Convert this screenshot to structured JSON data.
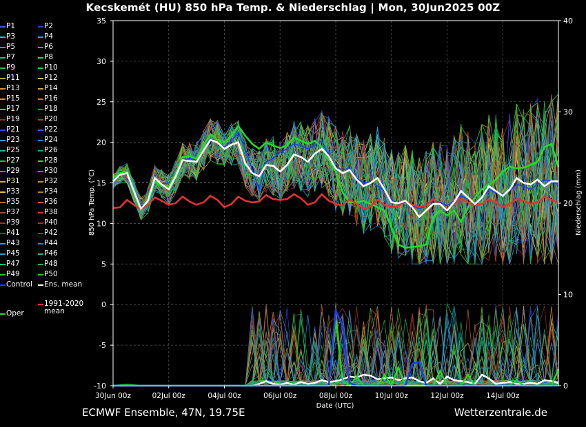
{
  "title": "Kecskemét  (HU)  850 hPa Temp. & Niederschlag | Mon, 30Jun2025 00Z",
  "footer_left": "ECMWF Ensemble, 47N, 19.75E",
  "footer_right": "Wetterzentrale.de",
  "colors": {
    "background": "#000000",
    "mean": "#ffffff",
    "climate": "#e83030",
    "operational": "#22dd22",
    "control": "#1a3cff",
    "grid": "#555555"
  },
  "legend": {
    "members": [
      "P1",
      "P2",
      "P3",
      "P4",
      "P5",
      "P6",
      "P7",
      "P8",
      "P9",
      "P10",
      "P11",
      "P12",
      "P13",
      "P14",
      "P15",
      "P16",
      "P17",
      "P18",
      "P19",
      "P20",
      "P21",
      "P22",
      "P23",
      "P24",
      "P25",
      "P26",
      "P27",
      "P28",
      "P29",
      "P30",
      "P31",
      "P32",
      "P33",
      "P34",
      "P35",
      "P36",
      "P37",
      "P38",
      "P39",
      "P40",
      "P41",
      "P42",
      "P43",
      "P44",
      "P45",
      "P46",
      "P47",
      "P48",
      "P49",
      "P50"
    ],
    "control": "Control",
    "mean": "Ens. mean",
    "climate_line1": "1991-2020",
    "climate_line2": "mean",
    "oper": "Oper"
  },
  "chart_data": {
    "type": "line",
    "xlabel": "Date (UTC)",
    "ylabel": "850 hPa Temp. (°C)",
    "y2label": "Niederschlag (mm)",
    "ylim": [
      -10,
      35
    ],
    "y2lim": [
      0,
      40
    ],
    "xlim": [
      0,
      16
    ],
    "yticks": [
      -10,
      -5,
      0,
      5,
      10,
      15,
      20,
      25,
      30,
      35
    ],
    "y2ticks": [
      0,
      10,
      20,
      30,
      40
    ],
    "xticks": [
      0,
      2,
      4,
      6,
      8,
      10,
      12,
      14
    ],
    "xtick_labels": [
      "30Jun 00z",
      "02Jul 00z",
      "04Jul 00z",
      "06Jul 00z",
      "08Jul 00z",
      "10Jul 00z",
      "12Jul 00z",
      "14Jul 00z"
    ],
    "grid": true,
    "member_colors": [
      "#3a5cff",
      "#1e44d8",
      "#34b8c8",
      "#25a3e0",
      "#2a9fd0",
      "#18b0a0",
      "#20c080",
      "#2ad060",
      "#28c050",
      "#25d030",
      "#c8a040",
      "#e0b050",
      "#d0a030",
      "#e0a040",
      "#d09050",
      "#d07040",
      "#e08060",
      "#c05030",
      "#a03020",
      "#c03828",
      "#2d48f0",
      "#3060e0",
      "#30a0e0",
      "#2080c0",
      "#20b0b0",
      "#10a090",
      "#20c060",
      "#30d040",
      "#20c040",
      "#28b030",
      "#d0b040",
      "#c09030",
      "#e0c050",
      "#b08020",
      "#b07030",
      "#c06040",
      "#a05030",
      "#c04030",
      "#904020",
      "#b03020",
      "#3040e0",
      "#2050d0",
      "#4090e0",
      "#3080d0",
      "#20a0c0",
      "#30b090",
      "#10c070",
      "#20b050",
      "#30c030",
      "#20d020"
    ],
    "series": [
      {
        "name": "Ens. mean",
        "x": [
          0,
          0.25,
          0.5,
          0.75,
          1,
          1.25,
          1.5,
          1.75,
          2,
          2.25,
          2.5,
          2.75,
          3,
          3.25,
          3.5,
          3.75,
          4,
          4.25,
          4.5,
          4.75,
          5,
          5.25,
          5.5,
          5.75,
          6,
          6.25,
          6.5,
          6.75,
          7,
          7.25,
          7.5,
          7.75,
          8,
          8.25,
          8.5,
          8.75,
          9,
          9.25,
          9.5,
          9.75,
          10,
          10.25,
          10.5,
          10.75,
          11,
          11.25,
          11.5,
          11.75,
          12,
          12.25,
          12.5,
          12.75,
          13,
          13.25,
          13.5,
          13.75,
          14,
          14.25,
          14.5,
          14.75,
          15,
          15.25,
          15.5,
          15.75,
          16
        ],
        "y": [
          15.2,
          16,
          16.2,
          14,
          11.8,
          12.8,
          15.6,
          14.8,
          14.2,
          15.8,
          17.8,
          17.7,
          17.6,
          19,
          20.3,
          20,
          19.2,
          19.7,
          20,
          17.4,
          16.2,
          15.8,
          17.2,
          17.1,
          16.4,
          17.2,
          18.5,
          18.2,
          17.6,
          18.6,
          19.2,
          18.3,
          16.8,
          16.2,
          16.6,
          15.4,
          14.6,
          15,
          15.6,
          14.2,
          12.6,
          12.5,
          12.8,
          12,
          10.8,
          11.6,
          12.4,
          12.4,
          11.6,
          12.6,
          14,
          13.2,
          12.4,
          13.2,
          14.6,
          14,
          13.4,
          14.2,
          15.6,
          15,
          14.8,
          15.4,
          14.6,
          15.2,
          15.2
        ]
      },
      {
        "name": "1991-2020 mean",
        "x": [
          0,
          0.25,
          0.5,
          0.75,
          1,
          1.25,
          1.5,
          1.75,
          2,
          2.25,
          2.5,
          2.75,
          3,
          3.25,
          3.5,
          3.75,
          4,
          4.25,
          4.5,
          4.75,
          5,
          5.25,
          5.5,
          5.75,
          6,
          6.25,
          6.5,
          6.75,
          7,
          7.25,
          7.5,
          7.75,
          8,
          8.25,
          8.5,
          8.75,
          9,
          9.25,
          9.5,
          9.75,
          10,
          10.25,
          10.5,
          10.75,
          11,
          11.25,
          11.5,
          11.75,
          12,
          12.25,
          12.5,
          12.75,
          13,
          13.25,
          13.5,
          13.75,
          14,
          14.25,
          14.5,
          14.75,
          15,
          15.25,
          15.5,
          15.75,
          16
        ],
        "y": [
          11.9,
          12,
          12.9,
          12.3,
          11.7,
          12.3,
          13.2,
          12.8,
          12.3,
          12.5,
          13.3,
          12.7,
          12.3,
          12.6,
          13.4,
          12.9,
          12,
          12.4,
          13.3,
          12.8,
          12.6,
          12.7,
          13.5,
          13,
          12.9,
          13,
          13.6,
          13.1,
          12.3,
          12.6,
          13.6,
          12.8,
          12.4,
          12.2,
          13,
          12.4,
          11.8,
          12.1,
          12.9,
          12.3,
          12,
          12.1,
          12.8,
          12.3,
          12,
          12.2,
          13,
          12.3,
          11.8,
          12.4,
          13.1,
          12.6,
          12.2,
          12.4,
          13,
          12.6,
          12,
          12.4,
          13,
          12.8,
          12.4,
          12.6,
          13.3,
          12.9,
          12.6
        ]
      },
      {
        "name": "Oper",
        "x": [
          0,
          0.25,
          0.5,
          0.75,
          1,
          1.25,
          1.5,
          1.75,
          2,
          2.25,
          2.5,
          2.75,
          3,
          3.25,
          3.5,
          3.75,
          4,
          4.25,
          4.5,
          4.75,
          5,
          5.25,
          5.5,
          5.75,
          6,
          6.25,
          6.5,
          6.75,
          7,
          7.25,
          7.5,
          7.75,
          8,
          8.25,
          8.5,
          8.75,
          9,
          9.25,
          9.5,
          9.75,
          10,
          10.25,
          10.5,
          10.75,
          11,
          11.25,
          11.5,
          11.75,
          12,
          12.25,
          12.5,
          12.75,
          13,
          13.25,
          13.5,
          13.75,
          14,
          14.25,
          14.5,
          14.75,
          15,
          15.25,
          15.5,
          15.75,
          16
        ],
        "y": [
          15.6,
          16.2,
          16.4,
          13.8,
          11.6,
          12.6,
          15.2,
          14.6,
          14.6,
          16.2,
          18.2,
          18.3,
          18,
          19.6,
          21,
          20.3,
          20,
          20.8,
          22,
          20.8,
          19.8,
          19.2,
          20,
          19.6,
          19.3,
          19.6,
          20.6,
          20.2,
          19.8,
          20.2,
          19.4,
          17.8,
          16.4,
          13.8,
          12.6,
          12.6,
          12.8,
          12.4,
          12,
          11.6,
          9.5,
          7.4,
          7,
          7.1,
          7.2,
          7.4,
          10.8,
          11.6,
          11,
          11.6,
          10.2,
          12,
          13.2,
          14.2,
          14.8,
          15.4,
          16.4,
          17,
          16.8,
          16.9,
          17.2,
          17.6,
          19.4,
          19.8,
          17
        ]
      },
      {
        "name": "Control",
        "x": [
          0,
          0.25,
          0.5,
          0.75,
          1,
          1.25,
          1.5,
          1.75,
          2,
          2.25,
          2.5,
          2.75,
          3,
          3.25,
          3.5,
          3.75,
          4,
          4.25,
          4.5,
          4.75,
          5,
          5.25,
          5.5,
          5.75,
          6,
          6.25,
          6.5,
          6.75,
          7,
          7.25,
          7.5,
          7.75,
          8,
          8.25,
          8.5,
          8.75,
          9,
          9.25,
          9.5,
          9.75,
          10,
          10.25,
          10.5,
          10.75,
          11,
          11.25,
          11.5,
          11.75,
          12,
          12.25,
          12.5,
          12.75,
          13,
          13.25,
          13.5,
          13.75,
          14,
          14.25,
          14.5,
          14.75,
          15,
          15.25,
          15.5,
          15.75,
          16
        ],
        "y": [
          15.4,
          16,
          16.4,
          14.2,
          12,
          12.9,
          15.4,
          14.9,
          15,
          16,
          17.8,
          18,
          17.8,
          19,
          20.4,
          20,
          19.4,
          20.2,
          21.2,
          19.2,
          16.6,
          14.2,
          17.6,
          18,
          18.8,
          19.2,
          19.8,
          19.6,
          19.2,
          19.6,
          20.2,
          18.4,
          17,
          16.6,
          16.8,
          15.6,
          15,
          15.2,
          14.6,
          14,
          13,
          12.4,
          12.6,
          12.2,
          11.8,
          12.2,
          12.8,
          12.6,
          12.2,
          12.8,
          13.4,
          13,
          12.6,
          13.2,
          14.2,
          13.8,
          13.6,
          14,
          14.8,
          14.6,
          14.2,
          14.8,
          15.4,
          15.2,
          14.8
        ]
      }
    ],
    "precip_series": [
      {
        "name": "Ens. mean",
        "x": [
          0,
          0.5,
          1,
          1.5,
          2,
          2.5,
          3,
          3.5,
          4,
          4.5,
          5,
          5.25,
          5.5,
          5.75,
          6,
          6.25,
          6.5,
          6.75,
          7,
          7.25,
          7.5,
          7.75,
          8,
          8.25,
          8.5,
          8.75,
          9,
          9.25,
          9.5,
          9.75,
          10,
          10.25,
          10.5,
          10.75,
          11,
          11.25,
          11.5,
          11.75,
          12,
          12.25,
          12.5,
          12.75,
          13,
          13.25,
          13.5,
          13.75,
          14,
          14.25,
          14.5,
          14.75,
          15,
          15.25,
          15.5,
          15.75,
          16
        ],
        "y": [
          0,
          0,
          0,
          0,
          0,
          0,
          0,
          0,
          0,
          0,
          0,
          0.2,
          0.5,
          0.2,
          0.1,
          0.3,
          0.1,
          0.4,
          0.2,
          0.3,
          0.6,
          0.4,
          0.5,
          0.7,
          1,
          0.9,
          1.2,
          1.1,
          0.7,
          0.8,
          0.9,
          0.6,
          0.8,
          0.9,
          0.5,
          0.3,
          0.8,
          0.2,
          1,
          0.6,
          0.5,
          0.4,
          0.2,
          1.2,
          0.8,
          0.2,
          0.3,
          0.4,
          0.2,
          0.2,
          0.3,
          0.2,
          0.6,
          0.5,
          0.3
        ]
      },
      {
        "name": "Oper",
        "x": [
          0,
          0.5,
          1,
          1.5,
          2,
          2.5,
          3,
          3.5,
          4,
          4.5,
          5,
          5.25,
          5.5,
          5.75,
          6,
          6.25,
          6.5,
          6.75,
          7,
          7.25,
          7.5,
          7.75,
          8,
          8.25,
          8.5,
          8.75,
          9,
          9.25,
          9.5,
          9.75,
          10,
          10.25,
          10.5,
          10.75,
          11,
          11.25,
          11.5,
          11.75,
          12,
          12.25,
          12.5,
          12.75,
          13,
          13.25,
          13.5,
          13.75,
          14,
          14.25,
          14.5,
          14.75,
          15,
          15.25,
          15.5,
          15.75,
          16
        ],
        "y": [
          0,
          0.1,
          0,
          0,
          0,
          0,
          0,
          0,
          0,
          0,
          0,
          0,
          0,
          0,
          0,
          0,
          0,
          0,
          0,
          0,
          0,
          0,
          7.2,
          0.5,
          0,
          1,
          0,
          0,
          0,
          1.2,
          0,
          2,
          0,
          0,
          0,
          0,
          0,
          1.6,
          0,
          0,
          0,
          1.2,
          0,
          0,
          0,
          0,
          0,
          0,
          0.6,
          0,
          0,
          0,
          0,
          0,
          1.8
        ]
      },
      {
        "name": "Control",
        "x": [
          0,
          0.5,
          1,
          1.5,
          2,
          2.5,
          3,
          3.5,
          4,
          4.5,
          5,
          5.25,
          5.5,
          5.75,
          6,
          6.25,
          6.5,
          6.75,
          7,
          7.25,
          7.5,
          7.75,
          8,
          8.25,
          8.5,
          8.75,
          9,
          9.25,
          9.5,
          9.75,
          10,
          10.25,
          10.5,
          10.75,
          11,
          11.25,
          11.5,
          11.75,
          12,
          12.25,
          12.5,
          12.75,
          13,
          13.25,
          13.5,
          13.75,
          14,
          14.25,
          14.5,
          14.75,
          15,
          15.25,
          15.5,
          15.75,
          16
        ],
        "y": [
          0,
          0,
          0,
          0,
          0,
          0,
          0,
          0,
          0,
          0,
          0,
          0,
          0,
          0,
          0,
          0,
          0,
          0,
          0,
          0,
          0,
          0,
          8.2,
          6.5,
          0.3,
          0,
          0,
          0,
          0,
          0,
          0,
          0,
          0,
          2.4,
          2.6,
          0,
          0,
          0,
          0,
          0,
          0,
          0,
          0,
          0,
          0,
          0,
          0,
          0,
          0,
          0,
          0,
          0,
          0,
          0,
          0
        ]
      }
    ]
  }
}
